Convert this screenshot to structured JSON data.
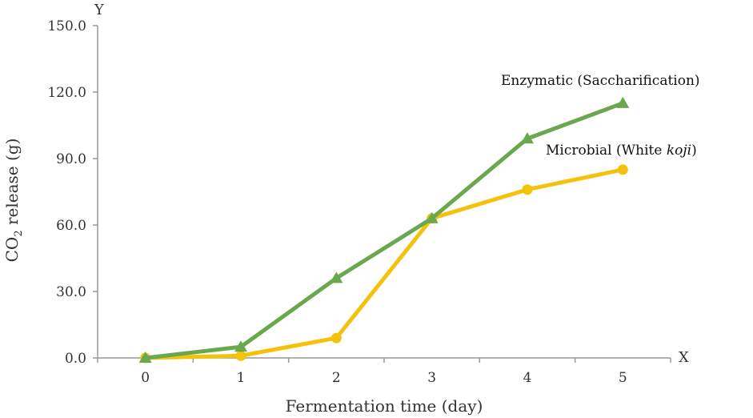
{
  "chart_data": {
    "type": "line",
    "x": [
      0,
      1,
      2,
      3,
      4,
      5
    ],
    "xlabel": "Fermentation time (day)",
    "ylabel_main": "CO",
    "ylabel_sub": "2",
    "ylabel_rest": " release (g)",
    "x_axis_letter": "X",
    "y_axis_letter": "Y",
    "xlim": [
      -0.5,
      5.5
    ],
    "ylim": [
      0,
      150
    ],
    "xticks": [
      "0",
      "1",
      "2",
      "3",
      "4",
      "5"
    ],
    "yticks": [
      "0.0",
      "30.0",
      "60.0",
      "90.0",
      "120.0",
      "150.0"
    ],
    "grid": false,
    "series": [
      {
        "name": "Enzymatic (Saccharification)",
        "name_italic_part": "",
        "values": [
          0,
          5,
          36,
          63,
          99,
          115
        ],
        "color": "#6aa84f",
        "marker": "triangle"
      },
      {
        "name": "Microbial (White ",
        "name_italic_part": "koji",
        "name_suffix": ")",
        "values": [
          0,
          1,
          9,
          63,
          76,
          85
        ],
        "color": "#f4c20d",
        "marker": "circle"
      }
    ]
  }
}
